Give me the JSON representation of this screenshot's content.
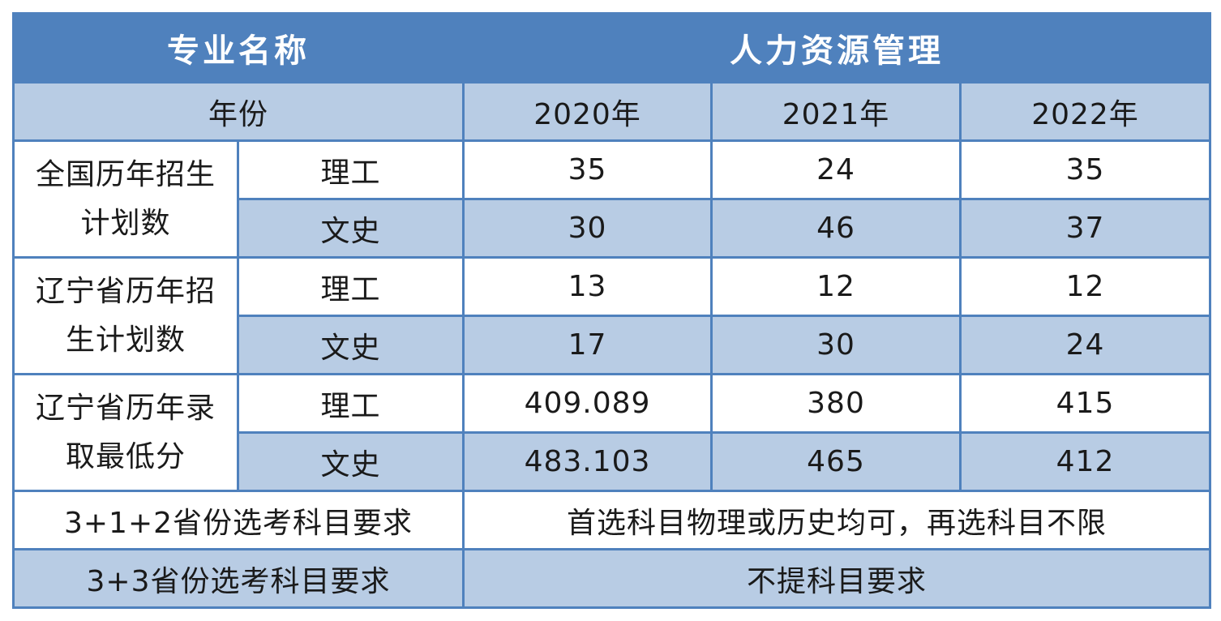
{
  "header": {
    "major_label": "专业名称",
    "major_value": "人力资源管理"
  },
  "year_row": {
    "label": "年份",
    "years": [
      "2020年",
      "2021年",
      "2022年"
    ]
  },
  "groups": [
    {
      "label_line1": "全国历年招生",
      "label_line2": "计划数",
      "rows": [
        {
          "type": "理工",
          "values": [
            "35",
            "24",
            "35"
          ]
        },
        {
          "type": "文史",
          "values": [
            "30",
            "46",
            "37"
          ]
        }
      ]
    },
    {
      "label_line1": "辽宁省历年招",
      "label_line2": "生计划数",
      "rows": [
        {
          "type": "理工",
          "values": [
            "13",
            "12",
            "12"
          ]
        },
        {
          "type": "文史",
          "values": [
            "17",
            "30",
            "24"
          ]
        }
      ]
    },
    {
      "label_line1": "辽宁省历年录",
      "label_line2": "取最低分",
      "rows": [
        {
          "type": "理工",
          "values": [
            "409.089",
            "380",
            "415"
          ]
        },
        {
          "type": "文史",
          "values": [
            "483.103",
            "465",
            "412"
          ]
        }
      ]
    }
  ],
  "requirements": [
    {
      "label": "3+1+2省份选考科目要求",
      "value": "首选科目物理或历史均可，再选科目不限"
    },
    {
      "label": "3+3省份选考科目要求",
      "value": "不提科目要求"
    }
  ],
  "colors": {
    "header_bg": "#4f81bd",
    "band_bg": "#b8cce4",
    "row_bg": "#ffffff"
  }
}
